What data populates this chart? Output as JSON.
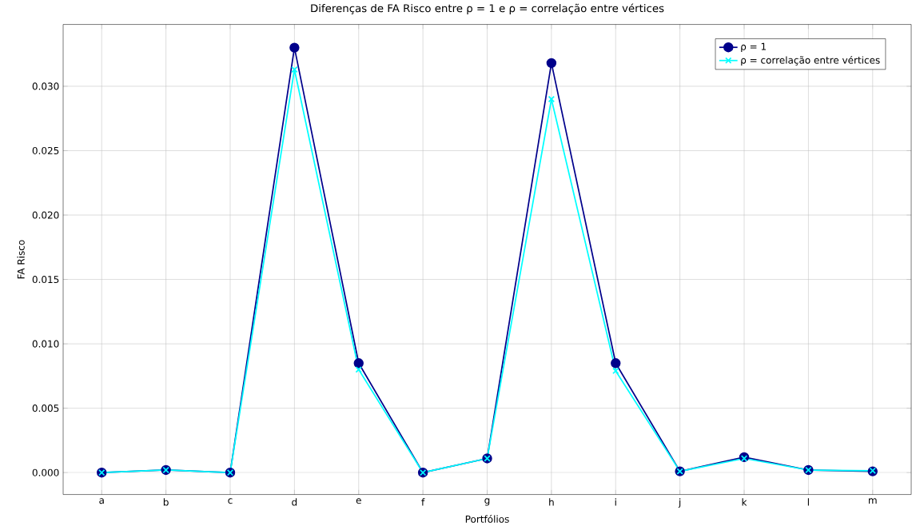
{
  "chart_data": {
    "type": "line",
    "title": "Diferenças de FA Risco entre ρ = 1 e ρ = correlação entre vértices",
    "xlabel": "Portfólios",
    "ylabel": "FA Risco",
    "categories": [
      "a",
      "b",
      "c",
      "d",
      "e",
      "f",
      "g",
      "h",
      "i",
      "j",
      "k",
      "l",
      "m"
    ],
    "series": [
      {
        "name": "ρ = 1",
        "color": "#00008b",
        "marker": "circle",
        "values": [
          0.0,
          0.0002,
          0.0,
          0.033,
          0.0085,
          0.0,
          0.0011,
          0.0318,
          0.0085,
          0.0001,
          0.0012,
          0.0002,
          0.0001
        ]
      },
      {
        "name": "ρ = correlação entre vértices",
        "color": "#00ffff",
        "marker": "cross",
        "values": [
          0.0,
          0.0002,
          0.0,
          0.0313,
          0.008,
          0.0,
          0.0011,
          0.029,
          0.0079,
          0.0001,
          0.0011,
          0.0002,
          0.00015
        ]
      }
    ],
    "ylim": [
      -0.0017,
      0.0348
    ],
    "yticks": [
      {
        "value": 0,
        "label": "0.000"
      },
      {
        "value": 0.005,
        "label": "0.005"
      },
      {
        "value": 0.01,
        "label": "0.010"
      },
      {
        "value": 0.015,
        "label": "0.015"
      },
      {
        "value": 0.02,
        "label": "0.020"
      },
      {
        "value": 0.025,
        "label": "0.025"
      },
      {
        "value": 0.03,
        "label": "0.030"
      }
    ],
    "grid": true,
    "legend": "top right"
  }
}
